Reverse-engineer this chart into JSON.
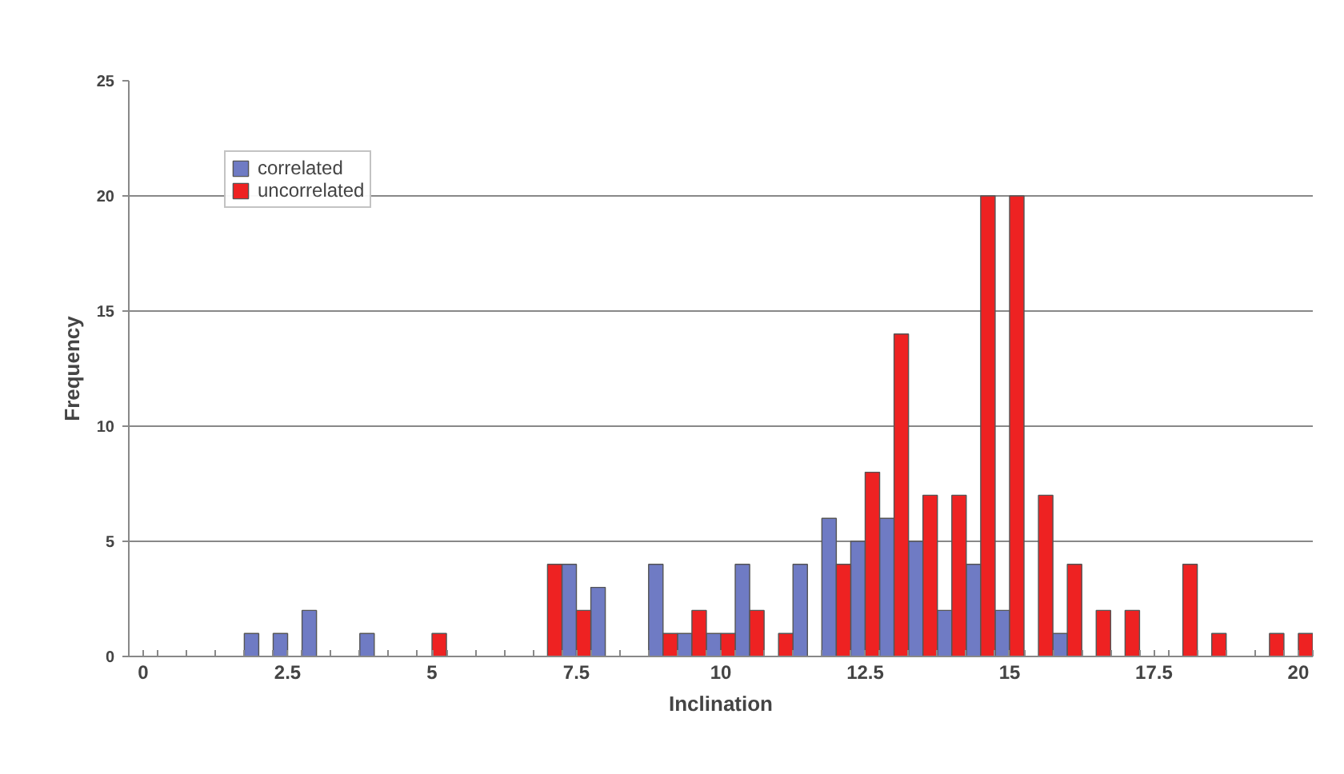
{
  "chart_data": {
    "type": "bar",
    "xlabel": "Inclination",
    "ylabel": "Frequency",
    "x": [
      2,
      2.5,
      3,
      3.5,
      4,
      4.5,
      5,
      5.5,
      6,
      6.5,
      7,
      7.5,
      8,
      8.5,
      9,
      9.5,
      10,
      10.5,
      11,
      11.5,
      12,
      12.5,
      13,
      13.5,
      14,
      14.5,
      15,
      15.5,
      16,
      16.5,
      17,
      17.5,
      18,
      18.5,
      19,
      19.5,
      20
    ],
    "series": [
      {
        "name": "correlated",
        "color": "#6f7bc4",
        "values": [
          1,
          1,
          2,
          null,
          1,
          null,
          null,
          null,
          null,
          null,
          null,
          4,
          3,
          null,
          4,
          1,
          1,
          4,
          null,
          4,
          6,
          5,
          6,
          5,
          2,
          4,
          2,
          null,
          1,
          null,
          null,
          null,
          null,
          null,
          null,
          null,
          null
        ]
      },
      {
        "name": "uncorrelated",
        "color": "#ee2222",
        "values": [
          null,
          null,
          null,
          null,
          null,
          null,
          1,
          null,
          null,
          null,
          4,
          2,
          null,
          null,
          1,
          2,
          1,
          2,
          1,
          null,
          4,
          8,
          14,
          7,
          7,
          20,
          20,
          7,
          4,
          2,
          2,
          null,
          4,
          1,
          null,
          1,
          1
        ]
      }
    ],
    "xlim": [
      -0.25,
      20.25
    ],
    "xticks": [
      0,
      2.5,
      5,
      7.5,
      10,
      12.5,
      15,
      17.5,
      20,
      {
        "value": -0.25,
        "label": null
      },
      {
        "value": 0.25,
        "label": null
      },
      {
        "value": 0.75,
        "label": null
      },
      {
        "value": 1.25,
        "label": null
      },
      {
        "value": 1.75,
        "label": null
      },
      {
        "value": 2.25,
        "label": null
      },
      {
        "value": 2.75,
        "label": null
      },
      {
        "value": 3.25,
        "label": null
      },
      {
        "value": 3.75,
        "label": null
      },
      {
        "value": 4.25,
        "label": null
      },
      {
        "value": 4.75,
        "label": null
      },
      {
        "value": 5.25,
        "label": null
      },
      {
        "value": 5.75,
        "label": null
      },
      {
        "value": 6.25,
        "label": null
      },
      {
        "value": 6.75,
        "label": null
      },
      {
        "value": 7.25,
        "label": null
      },
      {
        "value": 7.75,
        "label": null
      },
      {
        "value": 8.25,
        "label": null
      },
      {
        "value": 8.75,
        "label": null
      },
      {
        "value": 9.25,
        "label": null
      },
      {
        "value": 9.75,
        "label": null
      },
      {
        "value": 10.25,
        "label": null
      },
      {
        "value": 10.75,
        "label": null
      },
      {
        "value": 11.25,
        "label": null
      },
      {
        "value": 11.75,
        "label": null
      },
      {
        "value": 12.25,
        "label": null
      },
      {
        "value": 12.75,
        "label": null
      },
      {
        "value": 13.25,
        "label": null
      },
      {
        "value": 13.75,
        "label": null
      },
      {
        "value": 14.25,
        "label": null
      },
      {
        "value": 14.75,
        "label": null
      },
      {
        "value": 15.25,
        "label": null
      },
      {
        "value": 15.75,
        "label": null
      },
      {
        "value": 16.25,
        "label": null
      },
      {
        "value": 16.75,
        "label": null
      },
      {
        "value": 17.25,
        "label": null
      },
      {
        "value": 17.75,
        "label": null
      },
      {
        "value": 18.25,
        "label": null
      },
      {
        "value": 18.75,
        "label": null
      },
      {
        "value": 19.25,
        "label": null
      },
      {
        "value": 19.75,
        "label": null
      },
      {
        "value": 20.25,
        "label": null
      }
    ],
    "ylim": [
      0,
      25
    ],
    "yticks": [
      0,
      5,
      10,
      15,
      20,
      25
    ],
    "grid": "y",
    "legend": "top left"
  }
}
